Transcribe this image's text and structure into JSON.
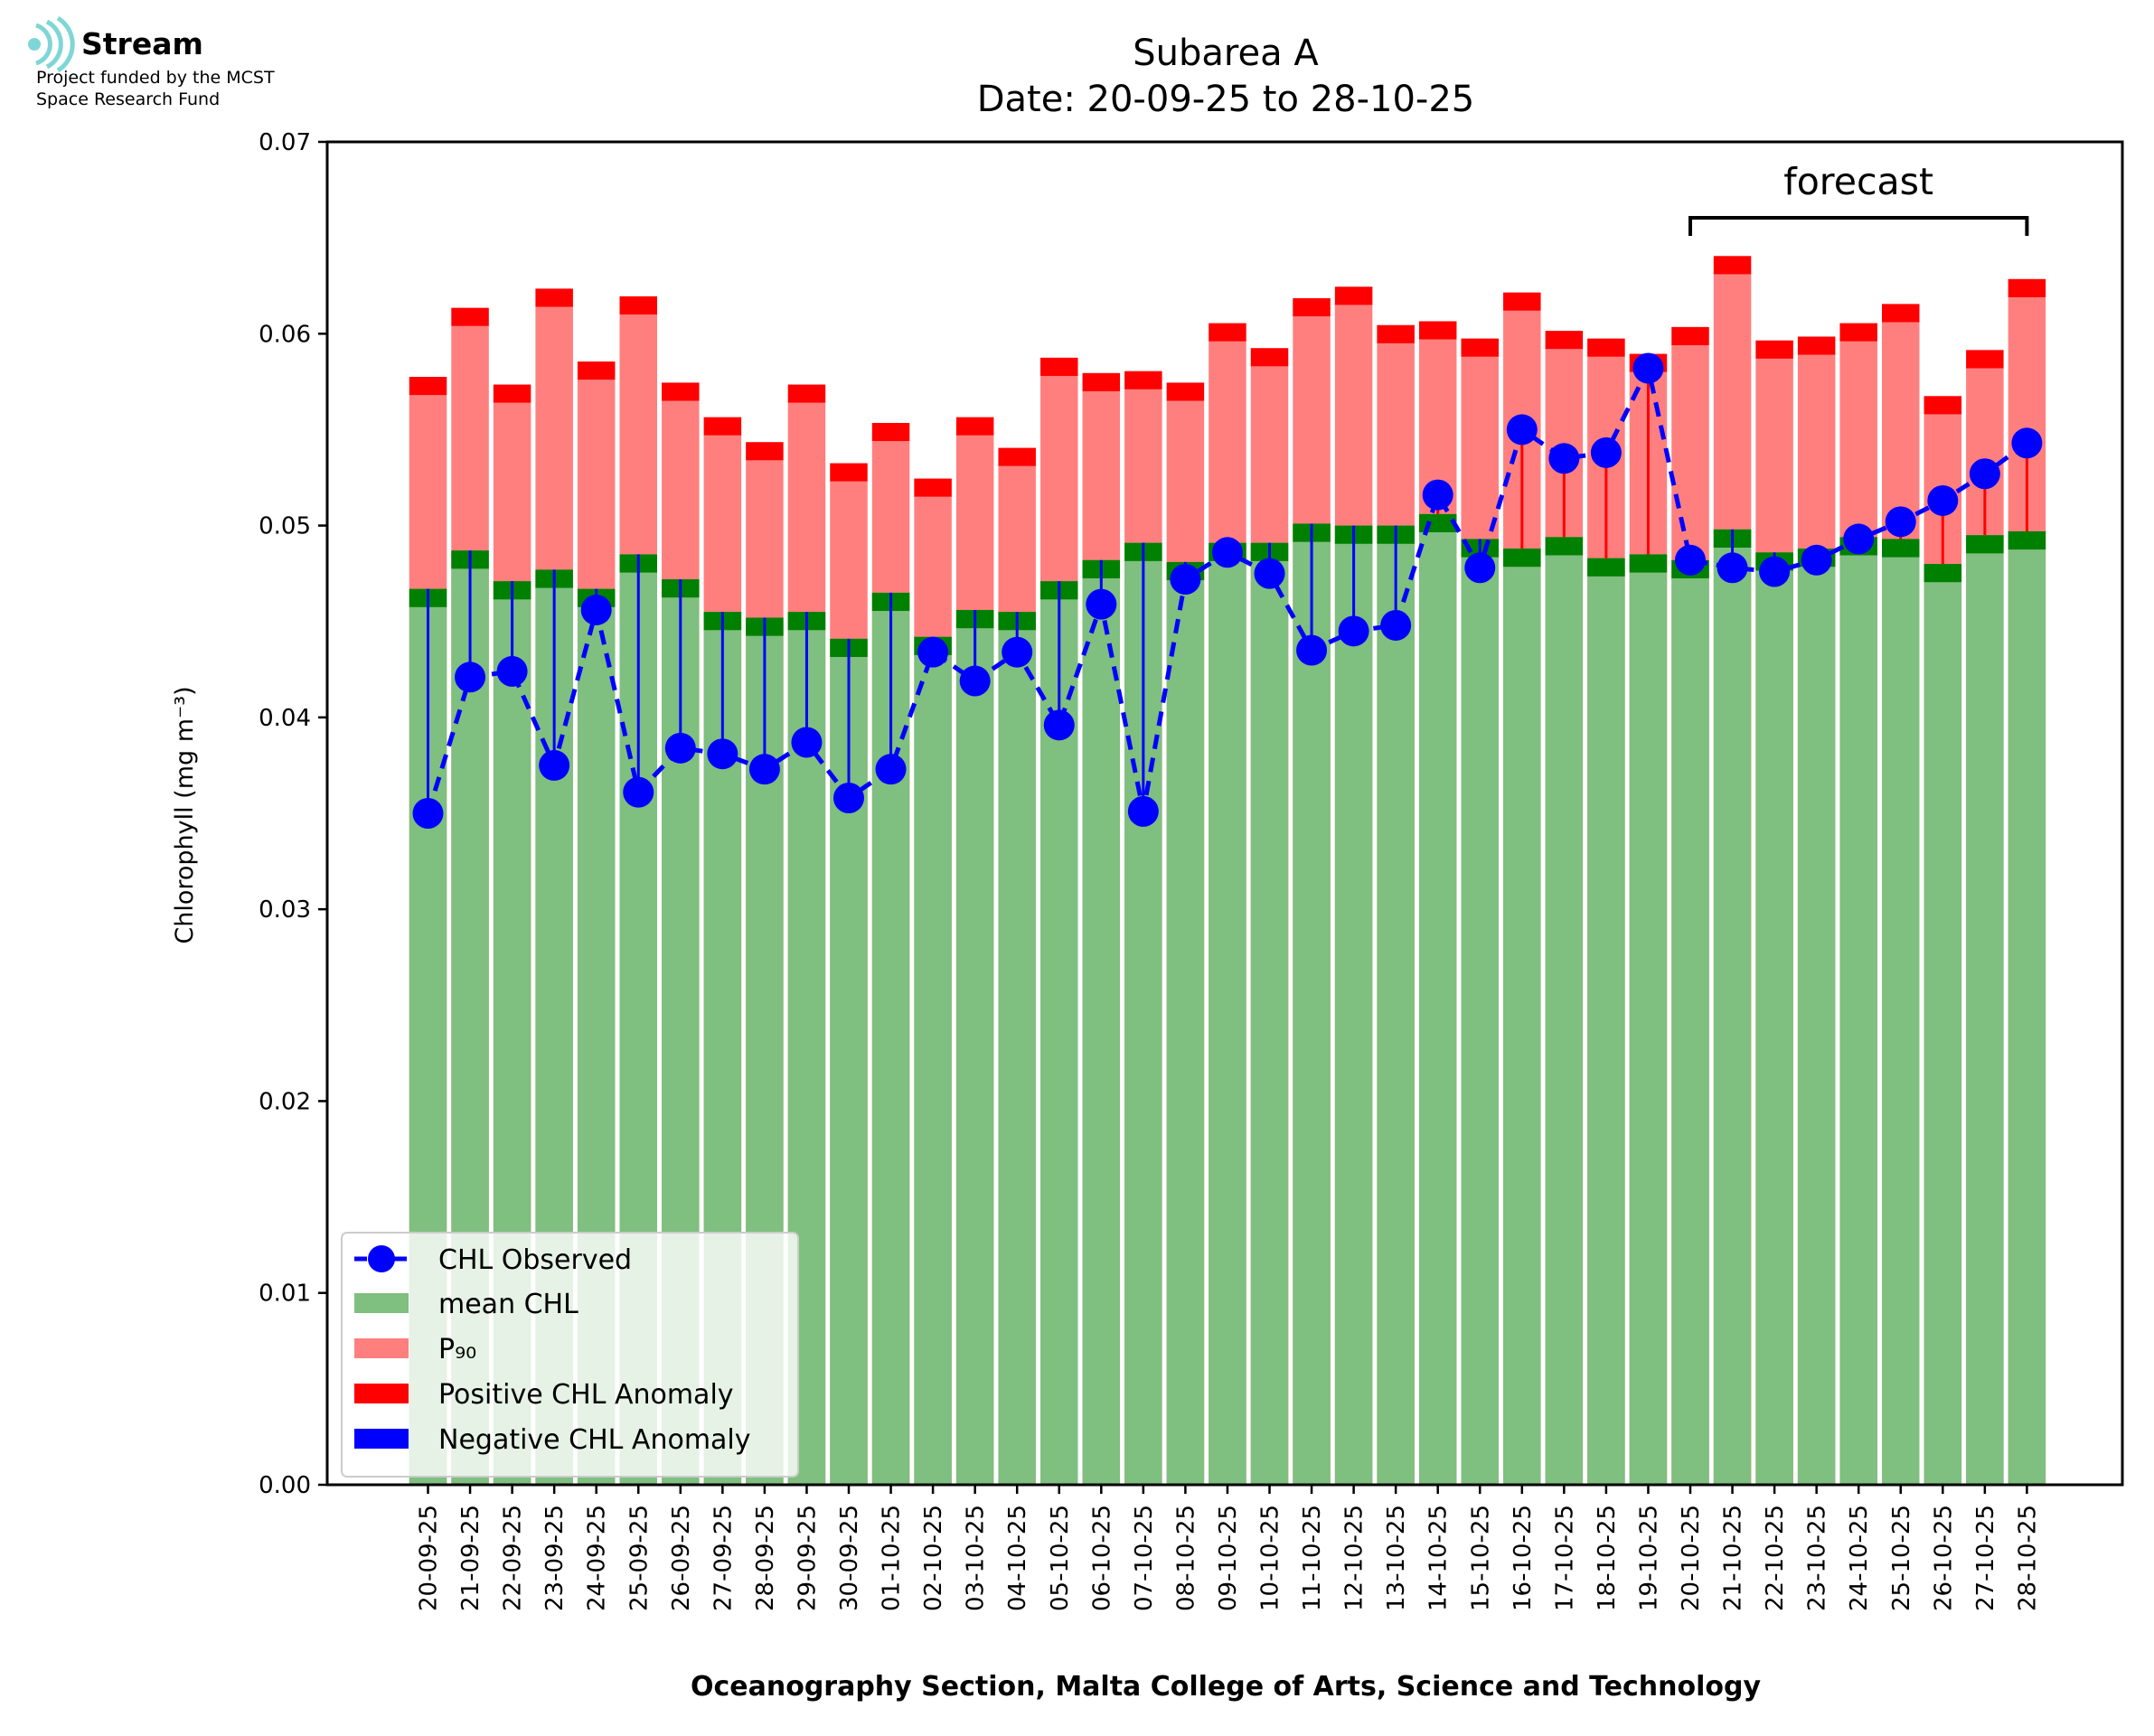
{
  "logo": {
    "name": "Stream",
    "line1": "Project funded by the MCST",
    "line2": "Space Research Fund"
  },
  "chart_data": {
    "type": "bar",
    "title": "Subarea A",
    "subtitle": "Date: 20-09-25 to 28-10-25",
    "xlabel": "Oceanography Section, Malta College of Arts, Science and Technology",
    "ylabel": "Chlorophyll (mg m⁻³)",
    "ylim": [
      0,
      0.07
    ],
    "yticks": [
      "0.00",
      "0.01",
      "0.02",
      "0.03",
      "0.04",
      "0.05",
      "0.06",
      "0.07"
    ],
    "grid": false,
    "legend_position": "lower-left",
    "forecast_label": "forecast",
    "forecast_range": [
      "20-10-25",
      "28-10-25"
    ],
    "categories": [
      "20-09-25",
      "21-09-25",
      "22-09-25",
      "23-09-25",
      "24-09-25",
      "25-09-25",
      "26-09-25",
      "27-09-25",
      "28-09-25",
      "29-09-25",
      "30-09-25",
      "01-10-25",
      "02-10-25",
      "03-10-25",
      "04-10-25",
      "05-10-25",
      "06-10-25",
      "07-10-25",
      "08-10-25",
      "09-10-25",
      "10-10-25",
      "11-10-25",
      "12-10-25",
      "13-10-25",
      "14-10-25",
      "15-10-25",
      "16-10-25",
      "17-10-25",
      "18-10-25",
      "19-10-25",
      "20-10-25",
      "21-10-25",
      "22-10-25",
      "23-10-25",
      "24-10-25",
      "25-10-25",
      "26-10-25",
      "27-10-25",
      "28-10-25"
    ],
    "series": [
      {
        "name": "CHL Observed",
        "color": "#0000ff",
        "values": [
          0.035,
          0.0421,
          0.0424,
          0.0375,
          0.0456,
          0.0361,
          0.0384,
          0.0381,
          0.0373,
          0.0387,
          0.0358,
          0.0373,
          0.0434,
          0.0419,
          0.0434,
          0.0396,
          0.0459,
          0.0351,
          0.0472,
          0.0486,
          0.0475,
          0.0435,
          0.0445,
          0.0448,
          0.0516,
          0.0478,
          0.055,
          0.0535,
          0.0538,
          0.0582,
          0.0482,
          0.0478,
          0.0476,
          0.0482,
          0.0493,
          0.0502,
          0.0513,
          0.0527,
          0.0543
        ]
      },
      {
        "name": "mean CHL",
        "color": "#7fbf7f",
        "values": [
          0.0467,
          0.0487,
          0.0471,
          0.0477,
          0.0467,
          0.0485,
          0.0472,
          0.0455,
          0.0452,
          0.0455,
          0.0441,
          0.0465,
          0.0442,
          0.0456,
          0.0455,
          0.0471,
          0.0482,
          0.0491,
          0.0481,
          0.0491,
          0.0491,
          0.0501,
          0.05,
          0.05,
          0.0506,
          0.0493,
          0.0488,
          0.0494,
          0.0483,
          0.0485,
          0.0482,
          0.0498,
          0.0486,
          0.0488,
          0.0494,
          0.0493,
          0.048,
          0.0495,
          0.0497
        ]
      },
      {
        "name": "P₉₀",
        "color": "#ff7f7f",
        "values": [
          0.0568,
          0.0604,
          0.0564,
          0.0614,
          0.0576,
          0.061,
          0.0565,
          0.0547,
          0.0534,
          0.0564,
          0.0523,
          0.0544,
          0.0515,
          0.0547,
          0.0531,
          0.0578,
          0.057,
          0.0571,
          0.0565,
          0.0596,
          0.0583,
          0.0609,
          0.0615,
          0.0595,
          0.0597,
          0.0588,
          0.0612,
          0.0592,
          0.0588,
          0.058,
          0.0594,
          0.0631,
          0.0587,
          0.0589,
          0.0596,
          0.0606,
          0.0558,
          0.0582,
          0.0619
        ]
      },
      {
        "name": "Positive CHL Anomaly",
        "color": "#ff0000"
      },
      {
        "name": "Negative CHL Anomaly",
        "color": "#0000ff"
      }
    ],
    "colors": {
      "mean_cap": "#008000",
      "p90_cap": "#ff0000",
      "axis": "#000000",
      "logo_accent": "#7fd6d6"
    }
  }
}
